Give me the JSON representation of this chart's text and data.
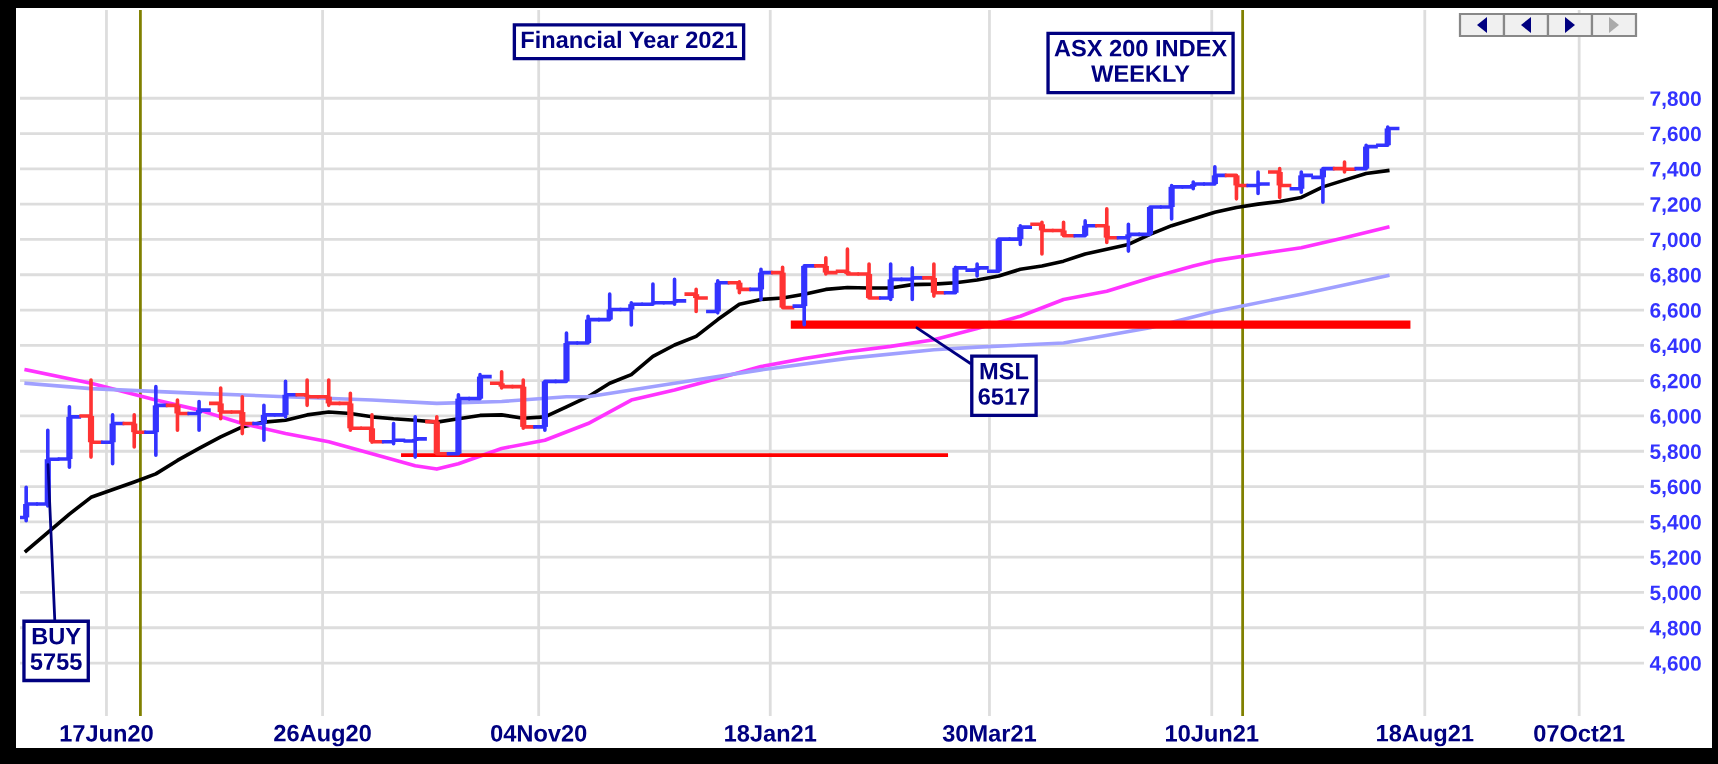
{
  "chart_data": {
    "type": "candlestick",
    "title": "ASX 200 INDEX\nWEEKLY",
    "subtitle": "Financial Year 2021",
    "x": [
      "2020-05-22",
      "2020-05-29",
      "2020-06-05",
      "2020-06-12",
      "2020-06-19",
      "2020-06-26",
      "2020-07-03",
      "2020-07-10",
      "2020-07-17",
      "2020-07-24",
      "2020-07-31",
      "2020-08-07",
      "2020-08-14",
      "2020-08-21",
      "2020-08-28",
      "2020-09-04",
      "2020-09-11",
      "2020-09-18",
      "2020-09-25",
      "2020-10-02",
      "2020-10-09",
      "2020-10-16",
      "2020-10-23",
      "2020-10-30",
      "2020-11-06",
      "2020-11-13",
      "2020-11-20",
      "2020-11-27",
      "2020-12-04",
      "2020-12-11",
      "2020-12-18",
      "2020-12-25",
      "2021-01-01",
      "2021-01-08",
      "2021-01-15",
      "2021-01-22",
      "2021-01-29",
      "2021-02-05",
      "2021-02-12",
      "2021-02-19",
      "2021-02-26",
      "2021-03-05",
      "2021-03-12",
      "2021-03-19",
      "2021-03-26",
      "2021-04-02",
      "2021-04-09",
      "2021-04-16",
      "2021-04-23",
      "2021-04-30",
      "2021-05-07",
      "2021-05-14",
      "2021-05-21",
      "2021-05-28",
      "2021-06-04",
      "2021-06-11",
      "2021-06-18",
      "2021-06-25",
      "2021-07-02",
      "2021-07-09",
      "2021-07-16",
      "2021-07-23",
      "2021-07-30",
      "2021-08-06"
    ],
    "ohlc": [
      [
        5425,
        5596,
        5406,
        5501
      ],
      [
        5501,
        5919,
        5490,
        5755
      ],
      [
        5756,
        6052,
        5710,
        5995
      ],
      [
        6000,
        6204,
        5767,
        5851
      ],
      [
        5851,
        6006,
        5729,
        5957
      ],
      [
        5957,
        6006,
        5824,
        5908
      ],
      [
        5908,
        6166,
        5778,
        6060
      ],
      [
        6060,
        6090,
        5919,
        6014
      ],
      [
        6014,
        6082,
        5919,
        6033
      ],
      [
        6071,
        6158,
        5984,
        6022
      ],
      [
        6022,
        6109,
        5900,
        5957
      ],
      [
        5957,
        6060,
        5862,
        6006
      ],
      [
        6006,
        6196,
        5995,
        6120
      ],
      [
        6120,
        6204,
        6060,
        6109
      ],
      [
        6109,
        6204,
        6060,
        6071
      ],
      [
        6071,
        6128,
        5919,
        5930
      ],
      [
        5930,
        6006,
        5851,
        5854
      ],
      [
        5854,
        5957,
        5843,
        5862
      ],
      [
        5858,
        5995,
        5767,
        5870
      ],
      [
        5968,
        5995,
        5786,
        5786
      ],
      [
        5786,
        6120,
        5786,
        6098
      ],
      [
        6098,
        6234,
        6098,
        6223
      ],
      [
        6185,
        6250,
        6158,
        6166
      ],
      [
        6166,
        6204,
        5930,
        5938
      ],
      [
        5938,
        6196,
        5919,
        6196
      ],
      [
        6196,
        6470,
        6196,
        6413
      ],
      [
        6413,
        6565,
        6413,
        6546
      ],
      [
        6546,
        6690,
        6546,
        6603
      ],
      [
        6603,
        6641,
        6516,
        6633
      ],
      [
        6633,
        6747,
        6633,
        6641
      ],
      [
        6641,
        6774,
        6633,
        6652
      ],
      [
        6690,
        6717,
        6592,
        6668
      ],
      [
        6592,
        6766,
        6584,
        6755
      ],
      [
        6755,
        6760,
        6698,
        6717
      ],
      [
        6717,
        6831,
        6660,
        6812
      ],
      [
        6812,
        6842,
        6614,
        6614
      ],
      [
        6622,
        6850,
        6517,
        6850
      ],
      [
        6850,
        6896,
        6804,
        6812
      ],
      [
        6820,
        6945,
        6804,
        6804
      ],
      [
        6804,
        6861,
        6668,
        6668
      ],
      [
        6668,
        6861,
        6660,
        6774
      ],
      [
        6774,
        6839,
        6660,
        6782
      ],
      [
        6782,
        6861,
        6679,
        6698
      ],
      [
        6698,
        6842,
        6698,
        6839
      ],
      [
        6826,
        6861,
        6793,
        6839
      ],
      [
        6820,
        7002,
        6820,
        7002
      ],
      [
        7002,
        7078,
        6972,
        7070
      ],
      [
        7086,
        7097,
        6918,
        7051
      ],
      [
        7051,
        7097,
        7021,
        7021
      ],
      [
        7021,
        7105,
        7021,
        7078
      ],
      [
        7078,
        7173,
        6983,
        7010
      ],
      [
        7010,
        7086,
        6934,
        7029
      ],
      [
        7029,
        7184,
        7029,
        7184
      ],
      [
        7184,
        7306,
        7116,
        7298
      ],
      [
        7298,
        7325,
        7287,
        7314
      ],
      [
        7314,
        7412,
        7314,
        7363
      ],
      [
        7363,
        7363,
        7230,
        7306
      ],
      [
        7306,
        7382,
        7260,
        7314
      ],
      [
        7382,
        7401,
        7238,
        7306
      ],
      [
        7287,
        7382,
        7268,
        7363
      ],
      [
        7352,
        7401,
        7211,
        7401
      ],
      [
        7401,
        7439,
        7382,
        7398
      ],
      [
        7401,
        7534,
        7401,
        7526
      ],
      [
        7534,
        7637,
        7534,
        7629
      ]
    ],
    "colors": [
      "#3333ff",
      "#3333ff",
      "#3333ff",
      "#ff3333",
      "#3333ff",
      "#ff3333",
      "#3333ff",
      "#ff3333",
      "#3333ff",
      "#ff3333",
      "#ff3333",
      "#3333ff",
      "#3333ff",
      "#ff3333",
      "#ff3333",
      "#ff3333",
      "#ff3333",
      "#3333ff",
      "#3333ff",
      "#ff3333",
      "#3333ff",
      "#3333ff",
      "#ff3333",
      "#ff3333",
      "#3333ff",
      "#3333ff",
      "#3333ff",
      "#3333ff",
      "#3333ff",
      "#3333ff",
      "#3333ff",
      "#ff3333",
      "#3333ff",
      "#ff3333",
      "#3333ff",
      "#ff3333",
      "#3333ff",
      "#ff3333",
      "#ff3333",
      "#ff3333",
      "#3333ff",
      "#3333ff",
      "#ff3333",
      "#3333ff",
      "#3333ff",
      "#3333ff",
      "#3333ff",
      "#ff3333",
      "#ff3333",
      "#3333ff",
      "#ff3333",
      "#3333ff",
      "#3333ff",
      "#3333ff",
      "#3333ff",
      "#3333ff",
      "#ff3333",
      "#3333ff",
      "#ff3333",
      "#3333ff",
      "#3333ff",
      "#ff3333",
      "#3333ff",
      "#3333ff"
    ],
    "series": [
      {
        "type": "line",
        "color": "#000000",
        "x": [
          "2020-05-22",
          "2020-06-05",
          "2020-06-12",
          "2020-06-26",
          "2020-07-03",
          "2020-07-10",
          "2020-07-17",
          "2020-07-24",
          "2020-07-31",
          "2020-08-07",
          "2020-08-14",
          "2020-08-21",
          "2020-08-28",
          "2020-09-04",
          "2020-09-11",
          "2020-09-18",
          "2020-09-25",
          "2020-10-02",
          "2020-10-09",
          "2020-10-16",
          "2020-10-23",
          "2020-10-30",
          "2020-11-06",
          "2020-11-13",
          "2020-11-20",
          "2020-11-27",
          "2020-12-04",
          "2020-12-11",
          "2020-12-18",
          "2020-12-25",
          "2021-01-01",
          "2021-01-08",
          "2021-01-15",
          "2021-01-22",
          "2021-01-29",
          "2021-02-05",
          "2021-02-12",
          "2021-02-19",
          "2021-02-26",
          "2021-03-05",
          "2021-03-12",
          "2021-03-19",
          "2021-03-26",
          "2021-04-02",
          "2021-04-09",
          "2021-04-16",
          "2021-04-23",
          "2021-04-30",
          "2021-05-07",
          "2021-05-14",
          "2021-05-21",
          "2021-05-28",
          "2021-06-04",
          "2021-06-11",
          "2021-06-18",
          "2021-06-25",
          "2021-07-02",
          "2021-07-09",
          "2021-07-16",
          "2021-07-23",
          "2021-07-30",
          "2021-08-06"
        ],
        "values": [
          5235,
          5444,
          5539,
          5626,
          5672,
          5748,
          5816,
          5881,
          5938,
          5965,
          5976,
          6006,
          6022,
          6014,
          5995,
          5984,
          5976,
          5965,
          5984,
          6003,
          6006,
          5987,
          5995,
          6052,
          6109,
          6185,
          6234,
          6337,
          6402,
          6451,
          6546,
          6633,
          6660,
          6668,
          6690,
          6717,
          6728,
          6725,
          6725,
          6744,
          6747,
          6755,
          6770,
          6793,
          6831,
          6850,
          6877,
          6918,
          6945,
          6972,
          7029,
          7078,
          7116,
          7154,
          7181,
          7200,
          7215,
          7238,
          7298,
          7336,
          7374,
          7390
        ]
      },
      {
        "type": "line",
        "color": "#ff33ff",
        "x": [
          "2020-05-22",
          "2020-06-12",
          "2020-07-03",
          "2020-07-17",
          "2020-07-31",
          "2020-08-14",
          "2020-08-28",
          "2020-09-11",
          "2020-09-25",
          "2020-10-02",
          "2020-10-09",
          "2020-10-23",
          "2020-11-06",
          "2020-11-20",
          "2020-12-04",
          "2020-12-18",
          "2021-01-01",
          "2021-01-15",
          "2021-01-29",
          "2021-02-12",
          "2021-02-26",
          "2021-03-12",
          "2021-03-26",
          "2021-04-09",
          "2021-04-23",
          "2021-05-07",
          "2021-05-21",
          "2021-06-04",
          "2021-06-11",
          "2021-06-25",
          "2021-07-09",
          "2021-07-23",
          "2021-08-06"
        ],
        "values": [
          6261,
          6185,
          6090,
          6033,
          5957,
          5900,
          5854,
          5786,
          5718,
          5699,
          5729,
          5816,
          5862,
          5957,
          6090,
          6147,
          6212,
          6280,
          6326,
          6364,
          6394,
          6432,
          6495,
          6565,
          6660,
          6706,
          6782,
          6850,
          6880,
          6918,
          6953,
          7010,
          7070
        ]
      },
      {
        "type": "line",
        "color": "#a0a0ff",
        "x": [
          "2020-05-22",
          "2020-06-12",
          "2020-07-17",
          "2020-08-14",
          "2020-09-11",
          "2020-10-02",
          "2020-10-23",
          "2020-11-13",
          "2020-11-20",
          "2020-12-18",
          "2021-01-15",
          "2021-02-12",
          "2021-03-12",
          "2021-03-26",
          "2021-04-23",
          "2021-05-21",
          "2021-06-11",
          "2021-07-09",
          "2021-08-06"
        ],
        "values": [
          6185,
          6155,
          6128,
          6109,
          6090,
          6071,
          6082,
          6109,
          6109,
          6185,
          6261,
          6326,
          6375,
          6390,
          6413,
          6500,
          6592,
          6690,
          6795
        ]
      },
      {
        "type": "line",
        "color": "#ff0000",
        "x": [
          "2020-09-21",
          "2021-03-16"
        ],
        "values": [
          5778,
          5778
        ]
      },
      {
        "type": "line",
        "color": "#ff0000",
        "x": [
          "2021-01-26",
          "2021-08-12"
        ],
        "values": [
          6517,
          6517
        ]
      }
    ],
    "ref_lines": [
      {
        "axis": "x",
        "value": "2020-06-28",
        "color": "#808000"
      },
      {
        "axis": "x",
        "value": "2021-06-20",
        "color": "#808000"
      }
    ],
    "annotations": [
      {
        "text": "BUY\n5755",
        "x": "2020-05-29",
        "y": 5755
      },
      {
        "text": "MSL\n6517",
        "x": "2021-03-05",
        "y": 6517
      }
    ],
    "xlim": [
      "2020-05-20",
      "2021-10-28"
    ],
    "xticks": [
      {
        "value": "2020-06-17",
        "label": "17Jun20"
      },
      {
        "value": "2020-08-26",
        "label": "26Aug20"
      },
      {
        "value": "2020-11-04",
        "label": "04Nov20"
      },
      {
        "value": "2021-01-18",
        "label": "18Jan21"
      },
      {
        "value": "2021-03-30",
        "label": "30Mar21"
      },
      {
        "value": "2021-06-10",
        "label": "10Jun21"
      },
      {
        "value": "2021-08-18",
        "label": "18Aug21"
      },
      {
        "value": "2021-10-07",
        "label": "07Oct21"
      }
    ],
    "ylim": [
      4300,
      8300
    ],
    "yticks": [
      {
        "value": 4600,
        "label": "4,600"
      },
      {
        "value": 4800,
        "label": "4,800"
      },
      {
        "value": 5000,
        "label": "5,000"
      },
      {
        "value": 5200,
        "label": "5,200"
      },
      {
        "value": 5400,
        "label": "5,400"
      },
      {
        "value": 5600,
        "label": "5,600"
      },
      {
        "value": 5800,
        "label": "5,800"
      },
      {
        "value": 6000,
        "label": "6,000"
      },
      {
        "value": 6200,
        "label": "6,200"
      },
      {
        "value": 6400,
        "label": "6,400"
      },
      {
        "value": 6600,
        "label": "6,600"
      },
      {
        "value": 6800,
        "label": "6,800"
      },
      {
        "value": 7000,
        "label": "7,000"
      },
      {
        "value": 7200,
        "label": "7,200"
      },
      {
        "value": 7400,
        "label": "7,400"
      },
      {
        "value": 7600,
        "label": "7,600"
      },
      {
        "value": 7800,
        "label": "7,800"
      }
    ],
    "grid": true
  }
}
